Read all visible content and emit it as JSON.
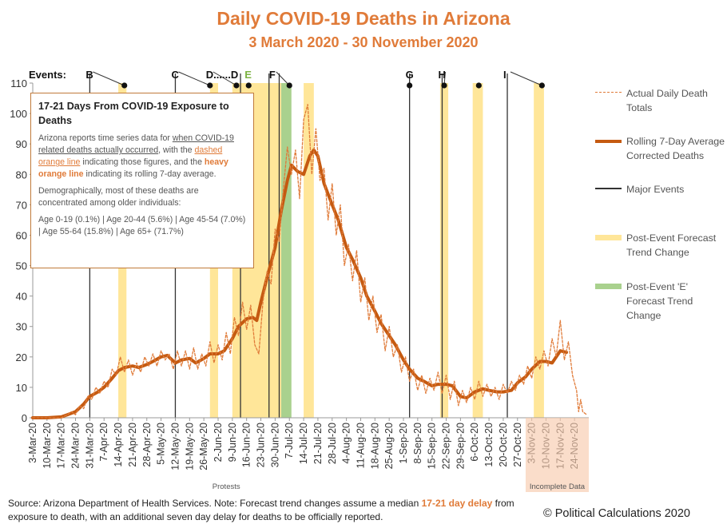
{
  "chart_data": {
    "type": "line",
    "title": "Daily COVID-19 Deaths in Arizona",
    "subtitle": "3 March 2020 - 30 November 2020",
    "ylim": [
      0,
      110
    ],
    "y_ticks": [
      "0",
      "10",
      "20",
      "30",
      "40",
      "50",
      "60",
      "70",
      "80",
      "90",
      "100",
      "110"
    ],
    "x_tick_labels": [
      "3-Mar-20",
      "10-Mar-20",
      "17-Mar-20",
      "24-Mar-20",
      "31-Mar-20",
      "7-Apr-20",
      "14-Apr-20",
      "21-Apr-20",
      "28-Apr-20",
      "5-May-20",
      "12-May-20",
      "19-May-20",
      "26-May-20",
      "2-Jun-20",
      "9-Jun-20",
      "16-Jun-20",
      "23-Jun-20",
      "30-Jun-20",
      "7-Jul-20",
      "14-Jul-20",
      "21-Jul-20",
      "28-Jul-20",
      "4-Aug-20",
      "11-Aug-20",
      "18-Aug-20",
      "25-Aug-20",
      "1-Sep-20",
      "8-Sep-20",
      "15-Sep-20",
      "22-Sep-20",
      "29-Sep-20",
      "6-Oct-20",
      "13-Oct-20",
      "20-Oct-20",
      "27-Oct-20",
      "3-Nov-20",
      "10-Nov-20",
      "17-Nov-20",
      "24-Nov-20"
    ],
    "events_label": "Events:",
    "events": [
      {
        "label": "B",
        "date": "2020-03-31",
        "marker_date": "2020-04-17"
      },
      {
        "label": "C",
        "date": "2020-05-12",
        "marker_date": "2020-05-29"
      },
      {
        "label": "D......D",
        "date": "2020-05-29",
        "marker_date": "2020-06-11"
      },
      {
        "label": "E",
        "date": "2020-06-17",
        "marker_date": "2020-06-17",
        "color": "#7cb342"
      },
      {
        "label": "F",
        "date": "2020-06-29",
        "marker_date": "2020-07-07"
      },
      {
        "label": "G",
        "date": "2020-09-04",
        "marker_date": "2020-09-04"
      },
      {
        "label": "H",
        "date": "2020-09-20",
        "marker_date": "2020-09-21"
      },
      {
        "label": "",
        "date": "2020-10-08",
        "marker_date": "2020-10-08"
      },
      {
        "label": "I",
        "date": "2020-10-22",
        "marker_date": "2020-11-08"
      }
    ],
    "major_event_lines": [
      "2020-03-31",
      "2020-05-12",
      "2020-06-13",
      "2020-06-27",
      "2020-07-02",
      "2020-09-04",
      "2020-09-20",
      "2020-10-22"
    ],
    "forecast_bands": [
      {
        "start": "2020-04-14",
        "end": "2020-04-18"
      },
      {
        "start": "2020-05-29",
        "end": "2020-06-02"
      },
      {
        "start": "2020-06-09",
        "end": "2020-07-03"
      },
      {
        "start": "2020-07-14",
        "end": "2020-07-19"
      },
      {
        "start": "2020-09-19",
        "end": "2020-09-23"
      },
      {
        "start": "2020-10-05",
        "end": "2020-10-10"
      },
      {
        "start": "2020-11-04",
        "end": "2020-11-09"
      }
    ],
    "e_band": {
      "start": "2020-07-03",
      "end": "2020-07-08"
    },
    "annotations": [
      {
        "text": "Protests",
        "start": "2020-05-29",
        "end": "2020-06-14"
      },
      {
        "text": "Incomplete Data",
        "start": "2020-10-31",
        "end": "2020-12-01"
      }
    ],
    "series": [
      {
        "name": "Rolling 7-Day Average Corrected Deaths",
        "style": "heavy",
        "color": "#C55A11",
        "points": [
          [
            "2020-03-03",
            0
          ],
          [
            "2020-03-10",
            0
          ],
          [
            "2020-03-17",
            0.3
          ],
          [
            "2020-03-20",
            1
          ],
          [
            "2020-03-24",
            2
          ],
          [
            "2020-03-28",
            4.5
          ],
          [
            "2020-03-31",
            7
          ],
          [
            "2020-04-04",
            8.5
          ],
          [
            "2020-04-07",
            10
          ],
          [
            "2020-04-11",
            13
          ],
          [
            "2020-04-14",
            15.5
          ],
          [
            "2020-04-17",
            16.5
          ],
          [
            "2020-04-21",
            17
          ],
          [
            "2020-04-24",
            16.5
          ],
          [
            "2020-04-28",
            17.5
          ],
          [
            "2020-05-01",
            18.5
          ],
          [
            "2020-05-05",
            20
          ],
          [
            "2020-05-08",
            20.5
          ],
          [
            "2020-05-12",
            18
          ],
          [
            "2020-05-15",
            19
          ],
          [
            "2020-05-19",
            19.5
          ],
          [
            "2020-05-22",
            18
          ],
          [
            "2020-05-26",
            19.5
          ],
          [
            "2020-05-29",
            21
          ],
          [
            "2020-06-02",
            21
          ],
          [
            "2020-06-05",
            22
          ],
          [
            "2020-06-09",
            26
          ],
          [
            "2020-06-12",
            30
          ],
          [
            "2020-06-16",
            32.5
          ],
          [
            "2020-06-19",
            33
          ],
          [
            "2020-06-21",
            32
          ],
          [
            "2020-06-23",
            38
          ],
          [
            "2020-06-26",
            46
          ],
          [
            "2020-06-30",
            56
          ],
          [
            "2020-07-03",
            68
          ],
          [
            "2020-07-06",
            78
          ],
          [
            "2020-07-08",
            83
          ],
          [
            "2020-07-11",
            81
          ],
          [
            "2020-07-14",
            80
          ],
          [
            "2020-07-17",
            86
          ],
          [
            "2020-07-19",
            88
          ],
          [
            "2020-07-21",
            86
          ],
          [
            "2020-07-24",
            77
          ],
          [
            "2020-07-28",
            70
          ],
          [
            "2020-07-31",
            65
          ],
          [
            "2020-08-04",
            56
          ],
          [
            "2020-08-07",
            52
          ],
          [
            "2020-08-11",
            46
          ],
          [
            "2020-08-14",
            40
          ],
          [
            "2020-08-18",
            35
          ],
          [
            "2020-08-21",
            31
          ],
          [
            "2020-08-25",
            27
          ],
          [
            "2020-08-28",
            24
          ],
          [
            "2020-09-01",
            19
          ],
          [
            "2020-09-04",
            16
          ],
          [
            "2020-09-08",
            13
          ],
          [
            "2020-09-11",
            12
          ],
          [
            "2020-09-15",
            10.5
          ],
          [
            "2020-09-18",
            11
          ],
          [
            "2020-09-22",
            11
          ],
          [
            "2020-09-25",
            10.5
          ],
          [
            "2020-09-29",
            7
          ],
          [
            "2020-10-02",
            6.5
          ],
          [
            "2020-10-06",
            8.5
          ],
          [
            "2020-10-10",
            9.5
          ],
          [
            "2020-10-13",
            9
          ],
          [
            "2020-10-17",
            8.5
          ],
          [
            "2020-10-20",
            8.5
          ],
          [
            "2020-10-24",
            9
          ],
          [
            "2020-10-27",
            11.5
          ],
          [
            "2020-10-31",
            13.5
          ],
          [
            "2020-11-03",
            16
          ],
          [
            "2020-11-07",
            18.5
          ],
          [
            "2020-11-10",
            18.5
          ],
          [
            "2020-11-13",
            18
          ],
          [
            "2020-11-17",
            22
          ],
          [
            "2020-11-20",
            21.5
          ]
        ]
      },
      {
        "name": "Actual Daily Death Totals",
        "style": "dashed",
        "color": "#E07B39",
        "points": [
          [
            "2020-03-03",
            0
          ],
          [
            "2020-03-17",
            0
          ],
          [
            "2020-03-20",
            1
          ],
          [
            "2020-03-22",
            2
          ],
          [
            "2020-03-24",
            1
          ],
          [
            "2020-03-26",
            4
          ],
          [
            "2020-03-28",
            3
          ],
          [
            "2020-03-30",
            7
          ],
          [
            "2020-04-01",
            6
          ],
          [
            "2020-04-03",
            10
          ],
          [
            "2020-04-05",
            8
          ],
          [
            "2020-04-07",
            12
          ],
          [
            "2020-04-09",
            10
          ],
          [
            "2020-04-11",
            16
          ],
          [
            "2020-04-13",
            14
          ],
          [
            "2020-04-15",
            20
          ],
          [
            "2020-04-17",
            15
          ],
          [
            "2020-04-19",
            19
          ],
          [
            "2020-04-21",
            14
          ],
          [
            "2020-04-23",
            18
          ],
          [
            "2020-04-25",
            15
          ],
          [
            "2020-04-27",
            20
          ],
          [
            "2020-04-29",
            17
          ],
          [
            "2020-05-01",
            21
          ],
          [
            "2020-05-03",
            17
          ],
          [
            "2020-05-05",
            22
          ],
          [
            "2020-05-07",
            19
          ],
          [
            "2020-05-09",
            21
          ],
          [
            "2020-05-11",
            16
          ],
          [
            "2020-05-13",
            22
          ],
          [
            "2020-05-15",
            17
          ],
          [
            "2020-05-17",
            22
          ],
          [
            "2020-05-19",
            16
          ],
          [
            "2020-05-21",
            23
          ],
          [
            "2020-05-23",
            16
          ],
          [
            "2020-05-25",
            21
          ],
          [
            "2020-05-27",
            17
          ],
          [
            "2020-05-29",
            25
          ],
          [
            "2020-05-31",
            18
          ],
          [
            "2020-06-02",
            24
          ],
          [
            "2020-06-04",
            19
          ],
          [
            "2020-06-06",
            28
          ],
          [
            "2020-06-08",
            21
          ],
          [
            "2020-06-10",
            33
          ],
          [
            "2020-06-12",
            27
          ],
          [
            "2020-06-14",
            38
          ],
          [
            "2020-06-16",
            29
          ],
          [
            "2020-06-18",
            37
          ],
          [
            "2020-06-20",
            24
          ],
          [
            "2020-06-22",
            21
          ],
          [
            "2020-06-24",
            38
          ],
          [
            "2020-06-26",
            48
          ],
          [
            "2020-06-28",
            44
          ],
          [
            "2020-06-30",
            62
          ],
          [
            "2020-07-02",
            58
          ],
          [
            "2020-07-04",
            75
          ],
          [
            "2020-07-06",
            89
          ],
          [
            "2020-07-08",
            80
          ],
          [
            "2020-07-10",
            88
          ],
          [
            "2020-07-12",
            72
          ],
          [
            "2020-07-14",
            98
          ],
          [
            "2020-07-16",
            103
          ],
          [
            "2020-07-18",
            80
          ],
          [
            "2020-07-20",
            95
          ],
          [
            "2020-07-22",
            78
          ],
          [
            "2020-07-24",
            82
          ],
          [
            "2020-07-26",
            65
          ],
          [
            "2020-07-28",
            77
          ],
          [
            "2020-07-30",
            60
          ],
          [
            "2020-08-01",
            70
          ],
          [
            "2020-08-03",
            50
          ],
          [
            "2020-08-05",
            57
          ],
          [
            "2020-08-07",
            45
          ],
          [
            "2020-08-09",
            55
          ],
          [
            "2020-08-11",
            38
          ],
          [
            "2020-08-13",
            46
          ],
          [
            "2020-08-15",
            32
          ],
          [
            "2020-08-17",
            40
          ],
          [
            "2020-08-19",
            28
          ],
          [
            "2020-08-21",
            34
          ],
          [
            "2020-08-23",
            22
          ],
          [
            "2020-08-25",
            30
          ],
          [
            "2020-08-27",
            20
          ],
          [
            "2020-08-29",
            24
          ],
          [
            "2020-08-31",
            15
          ],
          [
            "2020-09-02",
            20
          ],
          [
            "2020-09-04",
            12
          ],
          [
            "2020-09-06",
            16
          ],
          [
            "2020-09-08",
            9
          ],
          [
            "2020-09-10",
            14
          ],
          [
            "2020-09-12",
            8
          ],
          [
            "2020-09-14",
            13
          ],
          [
            "2020-09-16",
            9
          ],
          [
            "2020-09-18",
            15
          ],
          [
            "2020-09-20",
            8
          ],
          [
            "2020-09-22",
            14
          ],
          [
            "2020-09-24",
            6
          ],
          [
            "2020-09-26",
            12
          ],
          [
            "2020-09-28",
            4
          ],
          [
            "2020-09-30",
            9
          ],
          [
            "2020-10-02",
            5
          ],
          [
            "2020-10-04",
            10
          ],
          [
            "2020-10-06",
            6
          ],
          [
            "2020-10-08",
            12
          ],
          [
            "2020-10-10",
            7
          ],
          [
            "2020-10-12",
            11
          ],
          [
            "2020-10-14",
            7
          ],
          [
            "2020-10-16",
            10
          ],
          [
            "2020-10-18",
            6
          ],
          [
            "2020-10-20",
            11
          ],
          [
            "2020-10-22",
            8
          ],
          [
            "2020-10-24",
            12
          ],
          [
            "2020-10-26",
            9
          ],
          [
            "2020-10-28",
            14
          ],
          [
            "2020-10-30",
            11
          ],
          [
            "2020-11-01",
            17
          ],
          [
            "2020-11-03",
            13
          ],
          [
            "2020-11-05",
            20
          ],
          [
            "2020-11-07",
            16
          ],
          [
            "2020-11-09",
            22
          ],
          [
            "2020-11-11",
            17
          ],
          [
            "2020-11-13",
            26
          ],
          [
            "2020-11-15",
            20
          ],
          [
            "2020-11-17",
            32
          ],
          [
            "2020-11-19",
            19
          ],
          [
            "2020-11-21",
            25
          ],
          [
            "2020-11-23",
            14
          ],
          [
            "2020-11-25",
            9
          ],
          [
            "2020-11-26",
            2
          ],
          [
            "2020-11-27",
            6
          ],
          [
            "2020-11-28",
            2
          ],
          [
            "2020-11-30",
            1
          ]
        ]
      }
    ]
  },
  "infobox": {
    "title": "17-21 Days From COVID-19 Exposure to Deaths",
    "p1_a": "Arizona reports time series data for ",
    "p1_when": "when COVID-19 related deaths actually occurred",
    "p1_b": ", with the ",
    "p1_dashed": "dashed orange line",
    "p1_c": " indicating those figures, and the ",
    "p1_heavy": "heavy orange line",
    "p1_d": " indicating its rolling 7-day average.",
    "p2": "Demographically, most of these deaths are concentrated among older individuals:",
    "p3": "Age 0-19 (0.1%) | Age 20-44 (5.6%) | Age 45-54 (7.0%) | Age 55-64 (15.8%) | Age 65+ (71.7%)"
  },
  "legend": {
    "actual": "Actual Daily Death Totals",
    "rolling": "Rolling 7-Day Average Corrected Deaths",
    "major": "Major Events",
    "forecast": "Post-Event Forecast Trend Change",
    "e_forecast": "Post-Event 'E' Forecast Trend Change"
  },
  "colors": {
    "band": "#FFE699",
    "e_band": "#A9D18E",
    "annotation_box": "#F8CBAD",
    "heavy": "#C55A11",
    "dashed": "#E07B39"
  },
  "footer": {
    "a": "Source: Arizona Department of Health Services.  Note: Forecast trend changes assume a median ",
    "hl": "17-21 day delay",
    "b": " from exposure to death, with an additional seven day delay for deaths to be officially reported."
  },
  "copyright": "© Political Calculations 2020"
}
